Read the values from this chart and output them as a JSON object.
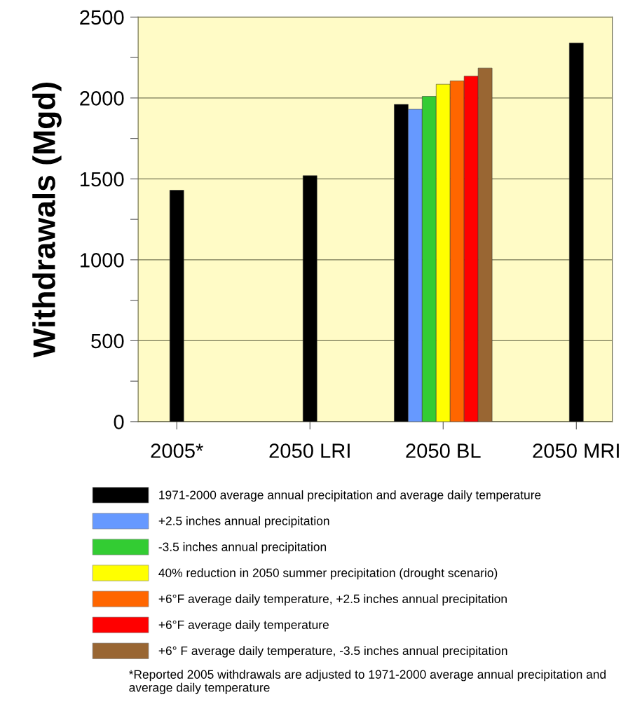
{
  "chart_data": {
    "type": "bar",
    "ylabel": "Withdrawals (Mgd)",
    "categories": [
      "2005*",
      "2050 LRI",
      "2050 BL",
      "2050 MRI"
    ],
    "series": [
      {
        "name": "1971-2000 average annual precipitation and average daily temperature",
        "color": "#000000",
        "values": [
          1430,
          1520,
          1960,
          2340
        ]
      },
      {
        "name": "+2.5 inches annual precipitation",
        "color": "#6699ff",
        "values": [
          null,
          null,
          1930,
          null
        ]
      },
      {
        "name": "-3.5 inches annual precipitation",
        "color": "#33cc33",
        "values": [
          null,
          null,
          2010,
          null
        ]
      },
      {
        "name": "40% reduction in 2050 summer precipitation (drought scenario)",
        "color": "#ffff00",
        "values": [
          null,
          null,
          2085,
          null
        ]
      },
      {
        "name": "+6°F average daily temperature, +2.5 inches annual precipitation",
        "color": "#ff6600",
        "values": [
          null,
          null,
          2105,
          null
        ]
      },
      {
        "name": "+6°F average daily temperature",
        "color": "#ff0000",
        "values": [
          null,
          null,
          2135,
          null
        ]
      },
      {
        "name": "+6° F average daily temperature, -3.5 inches annual precipitation",
        "color": "#996633",
        "values": [
          null,
          null,
          2185,
          null
        ]
      }
    ],
    "ylim": [
      0,
      2500
    ],
    "yticks": [
      0,
      {
        "value": 250,
        "label": null
      },
      500,
      {
        "value": 750,
        "label": null
      },
      1000,
      {
        "value": 1250,
        "label": null
      },
      1500,
      {
        "value": 1750,
        "label": null
      },
      2000,
      {
        "value": 2250,
        "label": null
      },
      2500
    ],
    "grid": "y",
    "legend": "bottom",
    "annotations": [
      "*Reported 2005 withdrawals are adjusted to 1971-2000 average annual precipitation and average daily temperature"
    ]
  }
}
